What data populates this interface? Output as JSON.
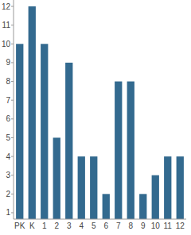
{
  "chart_data": {
    "type": "bar",
    "categories": [
      "PK",
      "K",
      "1",
      "2",
      "3",
      "4",
      "5",
      "6",
      "7",
      "8",
      "9",
      "10",
      "11",
      "12"
    ],
    "values": [
      10,
      12,
      10,
      5,
      9,
      4,
      4,
      2,
      8,
      8,
      2,
      3,
      4,
      4
    ],
    "color": "#336a8f",
    "ylim": [
      0.66,
      12.34
    ],
    "yticks": [
      1,
      2,
      3,
      4,
      5,
      6,
      7,
      8,
      9,
      10,
      11,
      12
    ],
    "grid": false
  }
}
